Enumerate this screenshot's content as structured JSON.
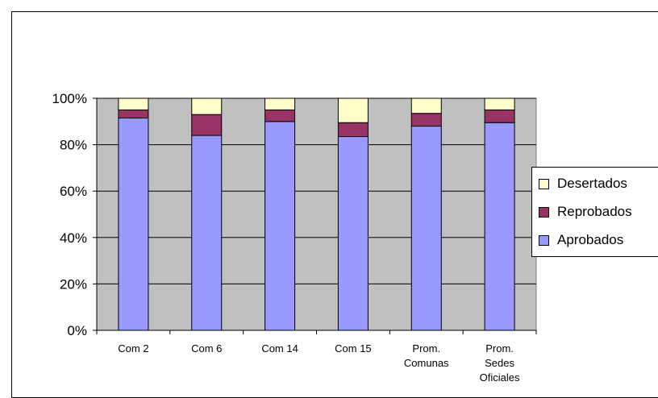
{
  "chart_data": {
    "type": "bar",
    "stacked": true,
    "percent": true,
    "categories": [
      [
        "Com 2"
      ],
      [
        "Com 6"
      ],
      [
        "Com 14"
      ],
      [
        "Com 15"
      ],
      [
        "Prom.",
        "Comunas"
      ],
      [
        "Prom.",
        "Sedes",
        "Oficiales"
      ]
    ],
    "series": [
      {
        "name": "Aprobados",
        "color": "#9999ff",
        "values": [
          91.5,
          84,
          90,
          83.5,
          88,
          89.5
        ]
      },
      {
        "name": "Reprobados",
        "color": "#993366",
        "values": [
          3.5,
          9,
          5,
          6,
          5.5,
          5.5
        ]
      },
      {
        "name": "Desertados",
        "color": "#ffffcc",
        "values": [
          5,
          7,
          5,
          10.5,
          6.5,
          5
        ]
      }
    ],
    "y_ticks": [
      "0%",
      "20%",
      "40%",
      "60%",
      "80%",
      "100%"
    ],
    "ylim": [
      0,
      100
    ],
    "grid": true,
    "plot_background": "#c0c0c0",
    "legend_position": "right",
    "legend": [
      "Desertados",
      "Reprobados",
      "Aprobados"
    ]
  }
}
